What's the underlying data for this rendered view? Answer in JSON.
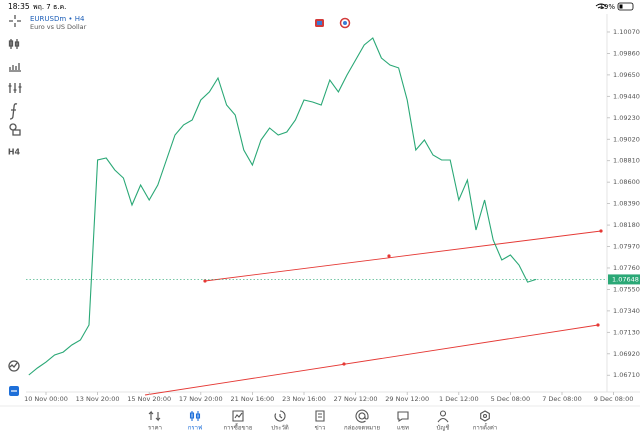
{
  "status_bar": {
    "time": "18:35",
    "date": "พฤ. 7 ธ.ค.",
    "battery": "19%"
  },
  "symbol": "EURUSDm • H4",
  "description": "Euro vs US Dollar",
  "timeframe": "H4",
  "chart_data": {
    "type": "line",
    "color": "#2aa876",
    "grid": false,
    "categories": [
      null,
      null,
      "10 Nov 00:00",
      null,
      null,
      null,
      null,
      null,
      "13 Nov 20:00",
      null,
      null,
      null,
      null,
      null,
      "15 Nov 20:00",
      null,
      null,
      null,
      null,
      null,
      "17 Nov 20:00",
      null,
      null,
      null,
      null,
      null,
      "21 Nov 16:00",
      null,
      null,
      null,
      null,
      null,
      "23 Nov 16:00",
      null,
      null,
      null,
      null,
      null,
      "27 Nov 12:00",
      null,
      null,
      null,
      null,
      null,
      "29 Nov 12:00",
      null,
      null,
      null,
      null,
      null,
      "1 Dec 12:00",
      null,
      null,
      null,
      null,
      null,
      "5 Dec 08:00",
      null,
      null,
      null,
      null,
      null,
      "7 Dec 08:00",
      null,
      null,
      null,
      null,
      null,
      "9 Dec 08:00"
    ],
    "values": [
      1.06712,
      1.06781,
      1.06839,
      1.06908,
      1.06937,
      1.07006,
      1.07055,
      1.07202,
      1.08817,
      1.08836,
      1.08719,
      1.08641,
      1.08376,
      1.08572,
      1.08425,
      1.08572,
      1.08817,
      1.09062,
      1.0916,
      1.09208,
      1.09404,
      1.09483,
      1.0962,
      1.09355,
      1.09257,
      1.08915,
      1.08768,
      1.09013,
      1.0913,
      1.09062,
      1.09091,
      1.09208,
      1.09404,
      1.09385,
      1.09355,
      1.096,
      1.09483,
      1.09649,
      1.09796,
      1.09943,
      1.10011,
      1.09815,
      1.09747,
      1.09718,
      1.09404,
      1.08915,
      1.09013,
      1.08866,
      1.08817,
      1.08817,
      1.08425,
      1.08621,
      1.08132,
      1.08425,
      1.08034,
      1.07838,
      1.07887,
      1.07789,
      1.07622,
      1.07648,
      null,
      null,
      null,
      null,
      null,
      null,
      null,
      null,
      null
    ],
    "ylim": [
      1.06546,
      1.10246
    ],
    "yticks": [
      {
        "value": 1.1007,
        "label": "1.10070"
      },
      {
        "value": 1.0986,
        "label": "1.09860"
      },
      {
        "value": 1.0965,
        "label": "1.09650"
      },
      {
        "value": 1.0944,
        "label": "1.09440"
      },
      {
        "value": 1.0923,
        "label": "1.09230"
      },
      {
        "value": 1.0902,
        "label": "1.09020"
      },
      {
        "value": 1.0881,
        "label": "1.08810"
      },
      {
        "value": 1.086,
        "label": "1.08600"
      },
      {
        "value": 1.0839,
        "label": "1.08390"
      },
      {
        "value": 1.0818,
        "label": "1.08180"
      },
      {
        "value": 1.0797,
        "label": "1.07970"
      },
      {
        "value": 1.0776,
        "label": "1.07760"
      },
      {
        "value": 1.0755,
        "label": "1.07550"
      },
      {
        "value": 1.0734,
        "label": "1.07340"
      },
      {
        "value": 1.0713,
        "label": "1.07130"
      },
      {
        "value": 1.0692,
        "label": "1.06920"
      },
      {
        "value": 1.0671,
        "label": "1.06710"
      }
    ],
    "last_price": 1.07648
  },
  "nav": [
    "ราคา",
    "กราฟ",
    "การซื้อขาย",
    "ประวัติ",
    "ข่าว",
    "กล่องจดหมาย",
    "แชท",
    "บัญชี",
    "การตั้งค่า"
  ]
}
